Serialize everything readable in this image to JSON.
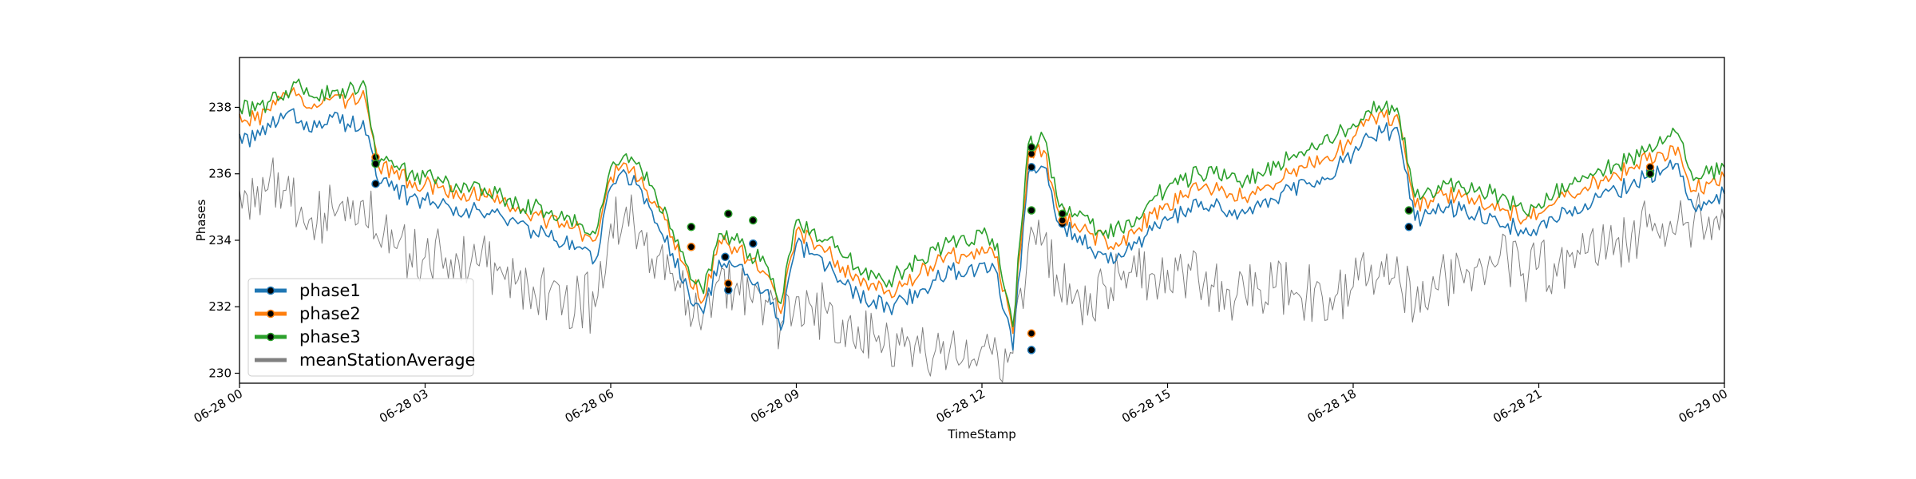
{
  "chart_data": {
    "type": "line",
    "title": "",
    "xlabel": "TimeStamp",
    "ylabel": "Phases",
    "xlim": [
      "2018-06-28T00:00",
      "2018-06-29T00:00"
    ],
    "ylim": [
      229.7,
      239.5
    ],
    "x_ticks": [
      "06-28 00",
      "06-28 03",
      "06-28 06",
      "06-28 09",
      "06-28 12",
      "06-28 15",
      "06-28 18",
      "06-28 21",
      "06-29 00"
    ],
    "y_ticks": [
      230,
      232,
      234,
      236,
      238
    ],
    "grid": false,
    "legend_position": "lower-left",
    "x_hours": [
      0,
      0.25,
      0.5,
      0.75,
      1,
      1.25,
      1.5,
      1.75,
      2,
      2.25,
      2.5,
      2.75,
      3,
      3.25,
      3.5,
      3.75,
      4,
      4.25,
      4.5,
      4.75,
      5,
      5.25,
      5.5,
      5.75,
      6,
      6.25,
      6.5,
      6.75,
      7,
      7.25,
      7.5,
      7.75,
      8,
      8.25,
      8.5,
      8.75,
      9,
      9.25,
      9.5,
      9.75,
      10,
      10.25,
      10.5,
      10.75,
      11,
      11.25,
      11.5,
      11.75,
      12,
      12.25,
      12.5,
      12.75,
      13,
      13.25,
      13.5,
      13.75,
      14,
      14.25,
      14.5,
      14.75,
      15,
      15.25,
      15.5,
      15.75,
      16,
      16.25,
      16.5,
      16.75,
      17,
      17.25,
      17.5,
      17.75,
      18,
      18.25,
      18.5,
      18.75,
      19,
      19.25,
      19.5,
      19.75,
      20,
      20.25,
      20.5,
      20.75,
      21,
      21.25,
      21.5,
      21.75,
      22,
      22.25,
      22.5,
      22.75,
      23,
      23.25,
      23.5,
      23.75,
      24
    ],
    "series": [
      {
        "name": "phase1",
        "color": "#1f77b4",
        "marker": true,
        "values": [
          237.2,
          237.0,
          237.4,
          237.8,
          237.6,
          237.4,
          237.7,
          237.5,
          237.6,
          235.7,
          235.5,
          235.3,
          235.2,
          235.1,
          235.0,
          234.9,
          234.8,
          234.7,
          234.5,
          234.3,
          234.1,
          233.9,
          233.8,
          233.4,
          235.6,
          236.0,
          235.5,
          234.5,
          233.6,
          232.5,
          231.8,
          233.4,
          233.2,
          232.8,
          232.5,
          231.3,
          233.9,
          233.6,
          233.2,
          232.7,
          232.4,
          232.2,
          232.0,
          232.2,
          232.5,
          232.8,
          233.1,
          233.0,
          233.3,
          233.0,
          230.7,
          236.0,
          236.2,
          234.5,
          234.2,
          233.8,
          233.6,
          233.5,
          233.9,
          234.3,
          234.6,
          234.8,
          235.0,
          235.0,
          234.9,
          234.8,
          235.0,
          235.2,
          235.5,
          235.7,
          235.9,
          236.2,
          236.6,
          237.1,
          237.3,
          237.1,
          234.6,
          234.8,
          235.0,
          234.9,
          234.8,
          234.7,
          234.5,
          234.2,
          234.4,
          234.6,
          234.9,
          235.1,
          235.3,
          235.5,
          235.7,
          235.9,
          236.1,
          236.3,
          235.0,
          235.2,
          235.4
        ],
        "markers": [
          [
            2.2,
            236.4
          ],
          [
            2.2,
            235.7
          ],
          [
            7.3,
            233.8
          ],
          [
            7.85,
            233.5
          ],
          [
            7.9,
            232.5
          ],
          [
            8.3,
            233.9
          ],
          [
            12.8,
            230.7
          ],
          [
            12.8,
            236.2
          ],
          [
            13.3,
            234.5
          ],
          [
            18.9,
            234.4
          ],
          [
            22.8,
            236.1
          ]
        ]
      },
      {
        "name": "phase2",
        "color": "#ff7f0e",
        "marker": true,
        "values": [
          237.8,
          237.6,
          237.9,
          238.4,
          238.3,
          238.0,
          238.3,
          238.2,
          238.5,
          236.2,
          236.0,
          235.8,
          235.7,
          235.6,
          235.5,
          235.4,
          235.3,
          235.2,
          235.0,
          234.8,
          234.6,
          234.4,
          234.3,
          234.0,
          235.9,
          236.3,
          235.9,
          235.0,
          234.1,
          233.0,
          232.2,
          234.0,
          233.8,
          233.4,
          233.0,
          231.8,
          234.3,
          234.0,
          233.7,
          233.2,
          232.9,
          232.7,
          232.5,
          232.7,
          233.0,
          233.3,
          233.6,
          233.5,
          233.8,
          233.5,
          231.2,
          236.5,
          236.7,
          234.8,
          234.5,
          234.2,
          234.0,
          233.9,
          234.3,
          234.8,
          235.1,
          235.3,
          235.5,
          235.5,
          235.4,
          235.3,
          235.5,
          235.7,
          236.0,
          236.2,
          236.4,
          236.7,
          237.1,
          237.6,
          237.7,
          237.5,
          235.0,
          235.2,
          235.4,
          235.3,
          235.2,
          235.1,
          234.9,
          234.6,
          234.8,
          235.1,
          235.4,
          235.6,
          235.8,
          236.0,
          236.2,
          236.4,
          236.6,
          236.8,
          235.5,
          235.7,
          235.9
        ],
        "markers": [
          [
            2.2,
            236.5
          ],
          [
            7.3,
            233.8
          ],
          [
            7.9,
            232.7
          ],
          [
            12.8,
            231.2
          ],
          [
            12.8,
            236.6
          ],
          [
            13.3,
            234.6
          ],
          [
            22.8,
            236.2
          ]
        ]
      },
      {
        "name": "phase3",
        "color": "#2ca02c",
        "marker": true,
        "values": [
          238.0,
          237.9,
          238.2,
          238.5,
          238.6,
          238.3,
          238.5,
          238.5,
          238.8,
          236.3,
          236.2,
          236.0,
          235.9,
          235.8,
          235.7,
          235.6,
          235.4,
          235.3,
          235.1,
          235.0,
          234.8,
          234.6,
          234.5,
          234.2,
          236.2,
          236.6,
          236.1,
          235.2,
          234.3,
          233.2,
          232.4,
          234.2,
          234.0,
          233.6,
          233.3,
          232.1,
          234.6,
          234.3,
          234.0,
          233.5,
          233.2,
          233.0,
          232.8,
          233.1,
          233.4,
          233.7,
          234.0,
          233.9,
          234.2,
          233.9,
          231.4,
          236.9,
          237.1,
          235.0,
          234.8,
          234.5,
          234.3,
          234.3,
          234.7,
          235.2,
          235.6,
          235.8,
          236.0,
          236.0,
          235.9,
          235.8,
          236.0,
          236.2,
          236.5,
          236.7,
          236.9,
          237.2,
          237.5,
          237.9,
          238.0,
          237.7,
          235.3,
          235.5,
          235.7,
          235.6,
          235.5,
          235.4,
          235.2,
          234.9,
          235.1,
          235.4,
          235.7,
          235.9,
          236.1,
          236.3,
          236.5,
          236.7,
          236.9,
          237.2,
          235.8,
          236.0,
          236.2
        ],
        "markers": [
          [
            2.2,
            236.3
          ],
          [
            7.3,
            234.4
          ],
          [
            7.9,
            234.8
          ],
          [
            8.3,
            234.6
          ],
          [
            12.8,
            234.9
          ],
          [
            12.8,
            236.8
          ],
          [
            13.3,
            234.8
          ],
          [
            18.9,
            234.9
          ],
          [
            22.8,
            236.0
          ]
        ]
      },
      {
        "name": "meanStationAverage",
        "color": "#808080",
        "marker": false,
        "values": [
          235.5,
          235.0,
          236.0,
          235.5,
          235.0,
          234.5,
          235.0,
          235.3,
          235.2,
          234.0,
          233.8,
          233.6,
          233.5,
          233.7,
          233.6,
          233.4,
          233.2,
          233.0,
          232.8,
          232.6,
          232.4,
          232.2,
          232.3,
          232.0,
          234.5,
          235.0,
          234.3,
          233.5,
          233.0,
          232.2,
          231.8,
          232.8,
          232.5,
          232.3,
          232.2,
          231.5,
          232.3,
          232.0,
          231.8,
          231.6,
          231.4,
          231.2,
          231.0,
          230.8,
          230.6,
          230.7,
          230.9,
          231.0,
          230.8,
          230.6,
          230.6,
          233.8,
          234.0,
          232.5,
          232.3,
          232.4,
          232.6,
          232.8,
          232.9,
          233.0,
          233.1,
          233.0,
          232.8,
          232.6,
          232.5,
          232.4,
          232.5,
          232.6,
          232.5,
          232.4,
          232.3,
          232.4,
          232.6,
          232.8,
          232.9,
          232.8,
          232.0,
          232.4,
          232.8,
          233.0,
          233.2,
          233.3,
          233.4,
          233.0,
          233.2,
          233.3,
          233.5,
          233.6,
          233.8,
          234.0,
          234.2,
          234.4,
          234.5,
          234.6,
          234.5,
          234.7,
          234.6
        ],
        "markers": []
      }
    ]
  }
}
